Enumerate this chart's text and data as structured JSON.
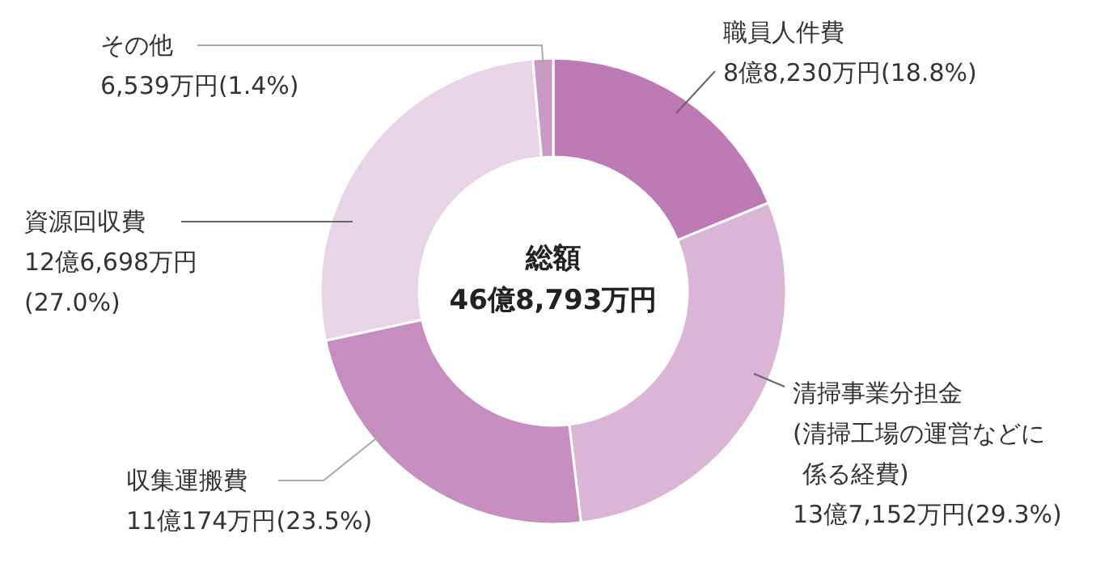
{
  "chart_data": {
    "type": "donut",
    "title": "総額",
    "subtitle": "46億8,793万円",
    "categories": [
      "職員人件費",
      "清掃事業分担金(清掃工場の運営などに係る経費)",
      "収集運搬費",
      "資源回収費",
      "その他"
    ],
    "values": [
      18.8,
      29.3,
      23.5,
      27.0,
      1.4
    ],
    "value_labels": [
      "8億8,230万円(18.8%)",
      "13億7,152万円(29.3%)",
      "11億174万円(23.5%)",
      "12億6,698万円(27.0%)",
      "6,539万円(1.4%)"
    ],
    "colors": [
      "#bd7ab4",
      "#dab5d6",
      "#c68fc0",
      "#e9d3e7",
      "#c89ac4"
    ]
  }
}
